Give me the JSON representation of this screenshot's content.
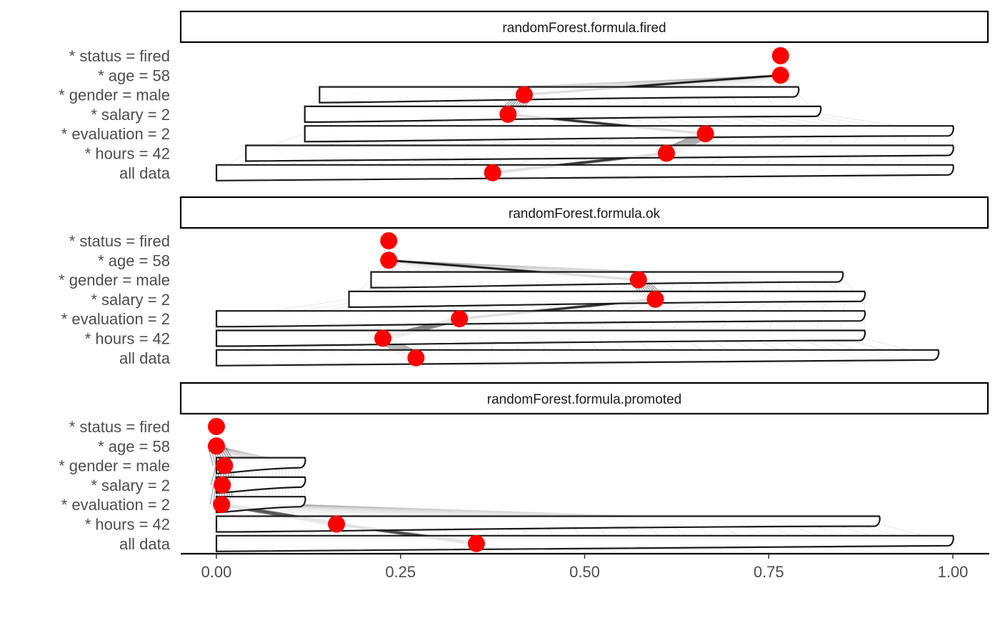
{
  "chart_data": {
    "type": "violin-breakdown",
    "x_range": [
      0,
      1
    ],
    "x_ticks": [
      "0.00",
      "0.25",
      "0.50",
      "0.75",
      "1.00"
    ],
    "x_tick_values": [
      0,
      0.25,
      0.5,
      0.75,
      1.0
    ],
    "y_levels": [
      "* status = fired",
      "* age = 58",
      "* gender = male",
      "* salary = 2",
      "* evaluation = 2",
      "* hours = 42",
      "all data"
    ],
    "marker_color": "#ff0000",
    "panels": [
      {
        "title": "randomForest.formula.fired",
        "points": [
          0.766,
          0.766,
          0.418,
          0.396,
          0.664,
          0.611,
          0.375
        ],
        "violins": [
          {
            "level": "* gender = male",
            "min": 0.14,
            "max": 0.79
          },
          {
            "level": "* salary = 2",
            "min": 0.12,
            "max": 0.82
          },
          {
            "level": "* evaluation = 2",
            "min": 0.12,
            "max": 1.0
          },
          {
            "level": "* hours = 42",
            "min": 0.04,
            "max": 1.0
          },
          {
            "level": "all data",
            "min": 0.0,
            "max": 1.0
          }
        ]
      },
      {
        "title": "randomForest.formula.ok",
        "points": [
          0.234,
          0.234,
          0.573,
          0.596,
          0.33,
          0.226,
          0.271
        ],
        "violins": [
          {
            "level": "* gender = male",
            "min": 0.21,
            "max": 0.85
          },
          {
            "level": "* salary = 2",
            "min": 0.18,
            "max": 0.88
          },
          {
            "level": "* evaluation = 2",
            "min": 0.0,
            "max": 0.88
          },
          {
            "level": "* hours = 42",
            "min": 0.0,
            "max": 0.88
          },
          {
            "level": "all data",
            "min": 0.0,
            "max": 0.98
          }
        ]
      },
      {
        "title": "randomForest.formula.promoted",
        "points": [
          0.0,
          0.0,
          0.011,
          0.008,
          0.007,
          0.163,
          0.353
        ],
        "violins": [
          {
            "level": "* gender = male",
            "min": 0.0,
            "max": 0.12
          },
          {
            "level": "* salary = 2",
            "min": 0.0,
            "max": 0.12
          },
          {
            "level": "* evaluation = 2",
            "min": 0.0,
            "max": 0.12
          },
          {
            "level": "* hours = 42",
            "min": 0.0,
            "max": 0.9
          },
          {
            "level": "all data",
            "min": 0.0,
            "max": 1.0
          }
        ]
      }
    ]
  }
}
